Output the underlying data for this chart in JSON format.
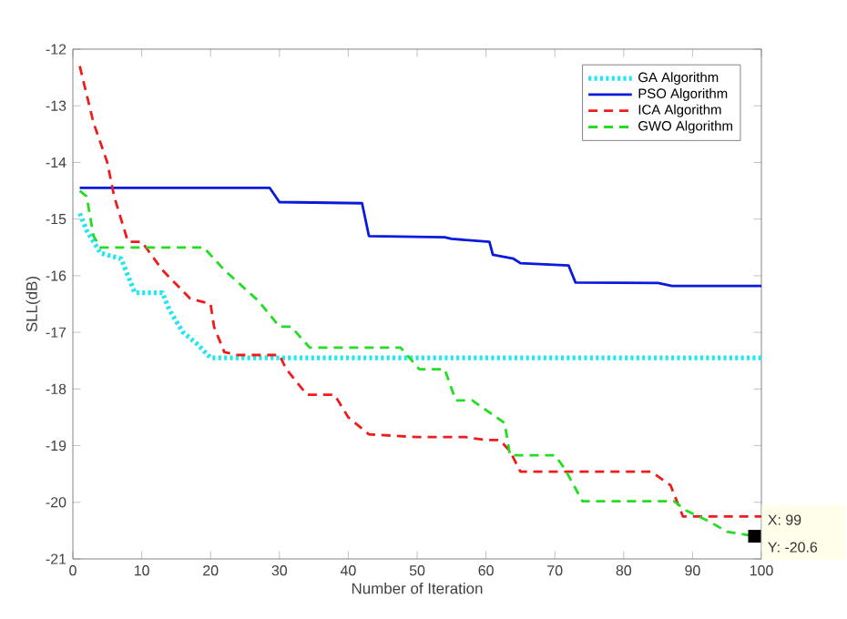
{
  "chart_data": {
    "type": "line",
    "xlabel": "Number of Iteration",
    "ylabel": "SLL(dB)",
    "xlim": [
      0,
      100
    ],
    "ylim": [
      -21,
      -12
    ],
    "xticks": [
      0,
      10,
      20,
      30,
      40,
      50,
      60,
      70,
      80,
      90,
      100
    ],
    "yticks": [
      -21,
      -20,
      -19,
      -18,
      -17,
      -16,
      -15,
      -14,
      -13,
      -12
    ],
    "legend": "top right",
    "grid": false,
    "marker": "none",
    "series": [
      {
        "name": "GA Algorithm",
        "color": "#22e6f0",
        "line_style": "dotted",
        "x": [
          1,
          2,
          4,
          7,
          9,
          13,
          14,
          16,
          18,
          20,
          100
        ],
        "values": [
          -14.9,
          -15.2,
          -15.6,
          -15.7,
          -16.3,
          -16.3,
          -16.6,
          -17.0,
          -17.2,
          -17.45,
          -17.45
        ]
      },
      {
        "name": "PSO Algorithm",
        "color": "#0a1adc",
        "line_style": "solid",
        "x": [
          1,
          28.6,
          30,
          42,
          43,
          54,
          55,
          60.5,
          61,
          64,
          65,
          72,
          73,
          85,
          87,
          100
        ],
        "values": [
          -14.45,
          -14.45,
          -14.7,
          -14.72,
          -15.3,
          -15.32,
          -15.35,
          -15.4,
          -15.63,
          -15.7,
          -15.78,
          -15.82,
          -16.12,
          -16.13,
          -16.18,
          -16.18
        ]
      },
      {
        "name": "ICA Algorithm",
        "color": "#ee1c1c",
        "line_style": "dashed",
        "x": [
          1,
          3,
          5,
          6,
          8,
          10,
          13,
          17,
          20,
          20.5,
          22,
          24,
          30,
          31,
          34,
          38,
          40,
          43,
          50,
          57,
          60,
          62,
          63.5,
          65,
          84,
          86.8,
          88.6,
          100
        ],
        "values": [
          -12.3,
          -13.3,
          -14.0,
          -14.6,
          -15.4,
          -15.4,
          -15.9,
          -16.4,
          -16.5,
          -16.9,
          -17.35,
          -17.4,
          -17.4,
          -17.65,
          -18.1,
          -18.1,
          -18.5,
          -18.8,
          -18.85,
          -18.85,
          -18.9,
          -18.9,
          -19.1,
          -19.46,
          -19.46,
          -19.7,
          -20.25,
          -20.25
        ]
      },
      {
        "name": "GWO Algorithm",
        "color": "#22dd22",
        "line_style": "dashed",
        "x": [
          1,
          2,
          3,
          4,
          19,
          22,
          27,
          30,
          31.7,
          34.4,
          47.6,
          50.3,
          54,
          55.6,
          58,
          62.7,
          63.5,
          70,
          71.4,
          74,
          87.3,
          89,
          92.6,
          95,
          96.6,
          99
        ],
        "values": [
          -14.5,
          -14.6,
          -15.3,
          -15.5,
          -15.5,
          -15.9,
          -16.45,
          -16.9,
          -16.9,
          -17.27,
          -17.27,
          -17.65,
          -17.65,
          -18.2,
          -18.2,
          -18.6,
          -19.17,
          -19.17,
          -19.4,
          -19.98,
          -19.98,
          -20.14,
          -20.35,
          -20.52,
          -20.55,
          -20.6
        ]
      }
    ],
    "annotations": [
      {
        "text": "X: 99",
        "x": 99,
        "y": -20.6
      },
      {
        "text": "Y: -20.6",
        "x": 99,
        "y": -20.6
      }
    ]
  }
}
